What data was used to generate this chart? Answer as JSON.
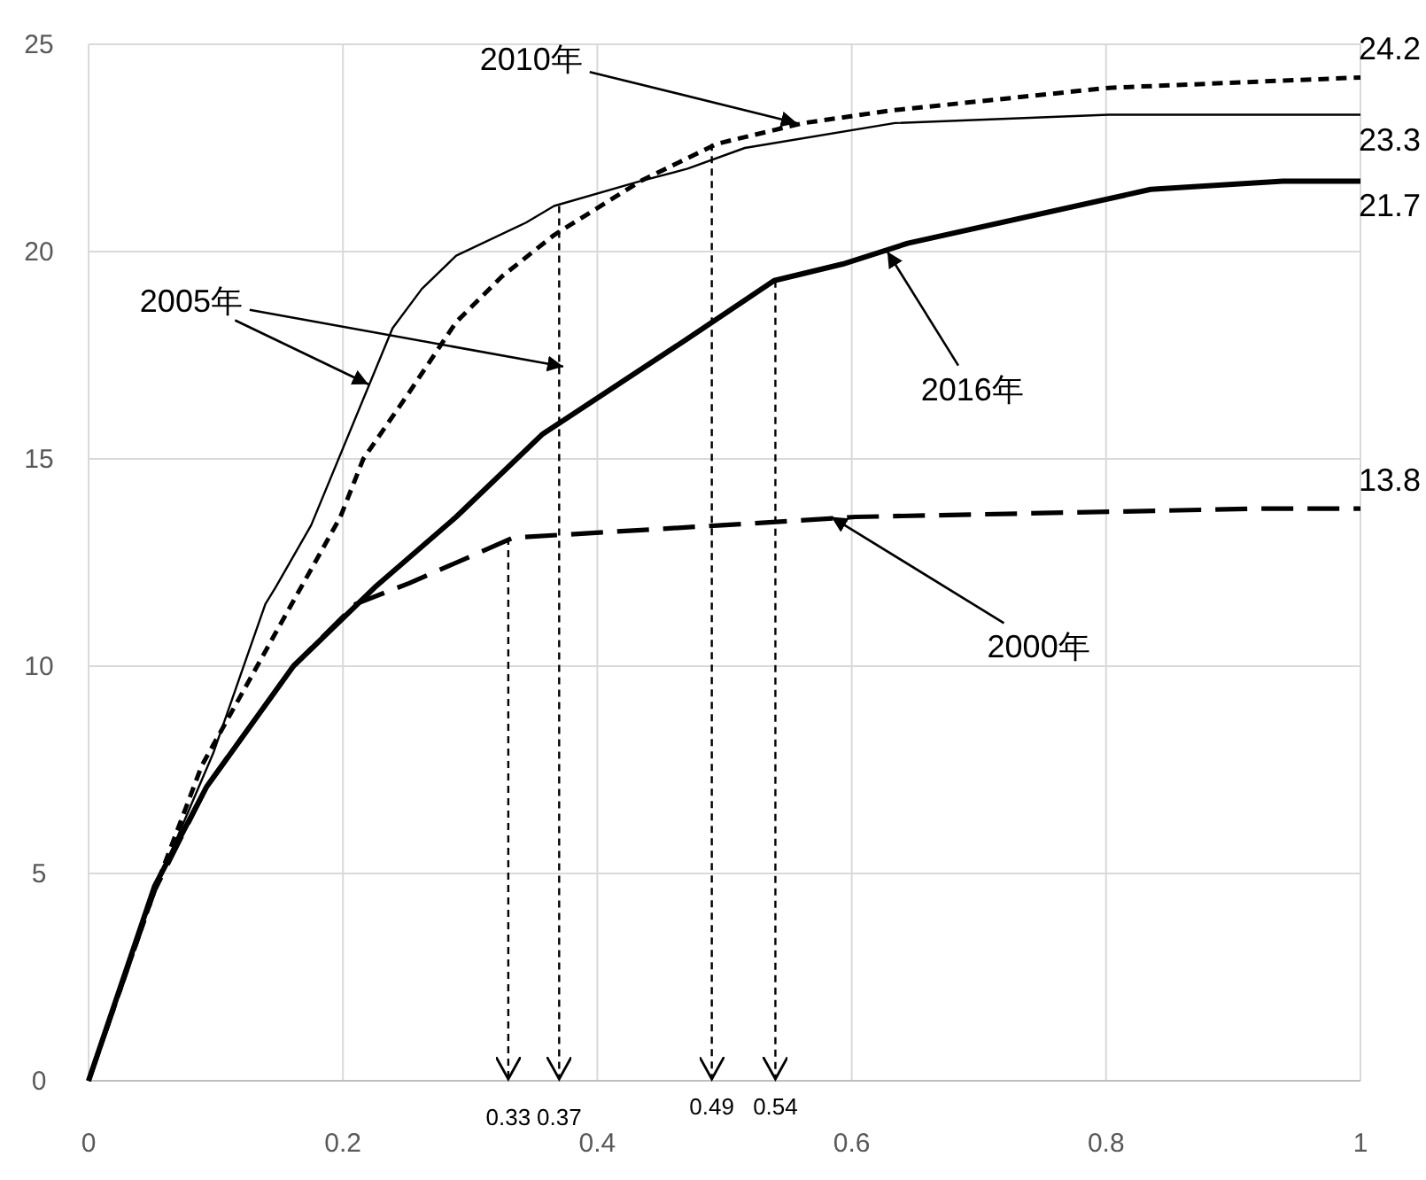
{
  "chart_data": {
    "type": "line",
    "xlim": [
      0,
      1
    ],
    "ylim": [
      0,
      25
    ],
    "xticks": [
      0,
      0.2,
      0.4,
      0.6,
      0.8,
      1
    ],
    "yticks": [
      0,
      5,
      10,
      15,
      20,
      25
    ],
    "grid": true,
    "series": [
      {
        "color": "#000000",
        "line_style": "dotted",
        "x": [
          0,
          0.052,
          0.089,
          0.147,
          0.198,
          0.216,
          0.252,
          0.289,
          0.325,
          0.366,
          0.434,
          0.494,
          0.562,
          0.63,
          0.802,
          1
        ],
        "values": [
          0,
          4.6,
          7.6,
          10.8,
          13.6,
          15.0,
          16.6,
          18.3,
          19.4,
          20.4,
          21.7,
          22.6,
          23.1,
          23.4,
          23.95,
          24.2
        ],
        "value_labels": [
          null,
          null,
          null,
          null,
          null,
          null,
          null,
          null,
          null,
          null,
          null,
          null,
          null,
          null,
          null,
          "24.2"
        ]
      },
      {
        "color": "#000000",
        "line_style": "solid",
        "x": [
          0,
          0.052,
          0.098,
          0.139,
          0.147,
          0.175,
          0.239,
          0.262,
          0.289,
          0.344,
          0.366,
          0.434,
          0.471,
          0.516,
          0.634,
          0.802,
          1
        ],
        "values": [
          0,
          4.6,
          7.9,
          11.5,
          11.9,
          13.4,
          18.15,
          19.1,
          19.9,
          20.7,
          21.1,
          21.7,
          22.0,
          22.5,
          23.1,
          23.3,
          23.3
        ],
        "value_labels": [
          null,
          null,
          null,
          null,
          null,
          null,
          null,
          null,
          null,
          null,
          null,
          null,
          null,
          null,
          null,
          null,
          "23.3"
        ]
      },
      {
        "color": "#000000",
        "line_style": "solid",
        "x": [
          0,
          0.052,
          0.093,
          0.161,
          0.225,
          0.289,
          0.357,
          0.471,
          0.539,
          0.593,
          0.644,
          0.835,
          0.939,
          1
        ],
        "values": [
          0,
          4.7,
          7.1,
          10.0,
          11.9,
          13.6,
          15.6,
          17.9,
          19.3,
          19.7,
          20.2,
          21.5,
          21.7,
          21.7
        ],
        "value_labels": [
          null,
          null,
          null,
          null,
          null,
          null,
          null,
          null,
          null,
          null,
          null,
          null,
          null,
          "21.7"
        ]
      },
      {
        "color": "#000000",
        "line_style": "dashed",
        "x": [
          0,
          0.052,
          0.093,
          0.161,
          0.21,
          0.252,
          0.334,
          0.498,
          0.603,
          0.921,
          1
        ],
        "values": [
          0,
          4.6,
          7.1,
          10.0,
          11.5,
          12.0,
          13.1,
          13.4,
          13.6,
          13.8,
          13.8
        ],
        "value_labels": [
          null,
          null,
          null,
          null,
          null,
          null,
          null,
          null,
          null,
          null,
          "13.8"
        ]
      }
    ],
    "annotations": [
      {
        "text": "2010年",
        "x": 0.557,
        "y": 23.1
      },
      {
        "text": "2005年",
        "x": 0.22,
        "y": 16.8
      },
      {
        "text": "2016年",
        "x": 0.628,
        "y": 20.0
      },
      {
        "text": "2000年",
        "x": 0.584,
        "y": 13.6
      },
      {
        "text": "0.33",
        "x": 0.33,
        "y": 13.1
      },
      {
        "text": "0.37",
        "x": 0.37,
        "y": 21.1
      },
      {
        "text": "0.49",
        "x": 0.49,
        "y": 22.6
      },
      {
        "text": "0.54",
        "x": 0.54,
        "y": 19.3
      }
    ]
  }
}
